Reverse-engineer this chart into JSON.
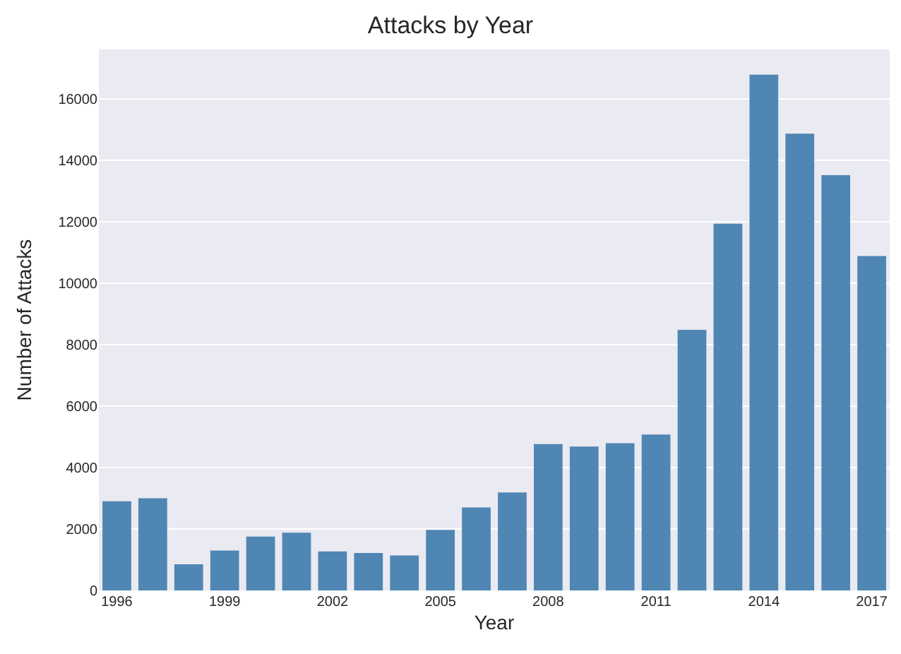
{
  "chart_data": {
    "type": "bar",
    "title": "Attacks by Year",
    "xlabel": "Year",
    "ylabel": "Number of Attacks",
    "categories": [
      "1996",
      null,
      null,
      "1999",
      null,
      null,
      "2002",
      null,
      null,
      "2005",
      null,
      null,
      "2008",
      null,
      null,
      "2011",
      null,
      null,
      "2014",
      null,
      null,
      "2017"
    ],
    "values": [
      2900,
      3000,
      850,
      1300,
      1750,
      1880,
      1270,
      1220,
      1140,
      1970,
      2700,
      3190,
      4760,
      4680,
      4790,
      5070,
      8480,
      11930,
      16780,
      14860,
      13510,
      10880
    ],
    "color": "#4f86b3",
    "ylim": [
      0,
      17600
    ],
    "yticks": [
      0,
      2000,
      4000,
      6000,
      8000,
      10000,
      12000,
      14000,
      16000
    ],
    "grid": "y"
  }
}
